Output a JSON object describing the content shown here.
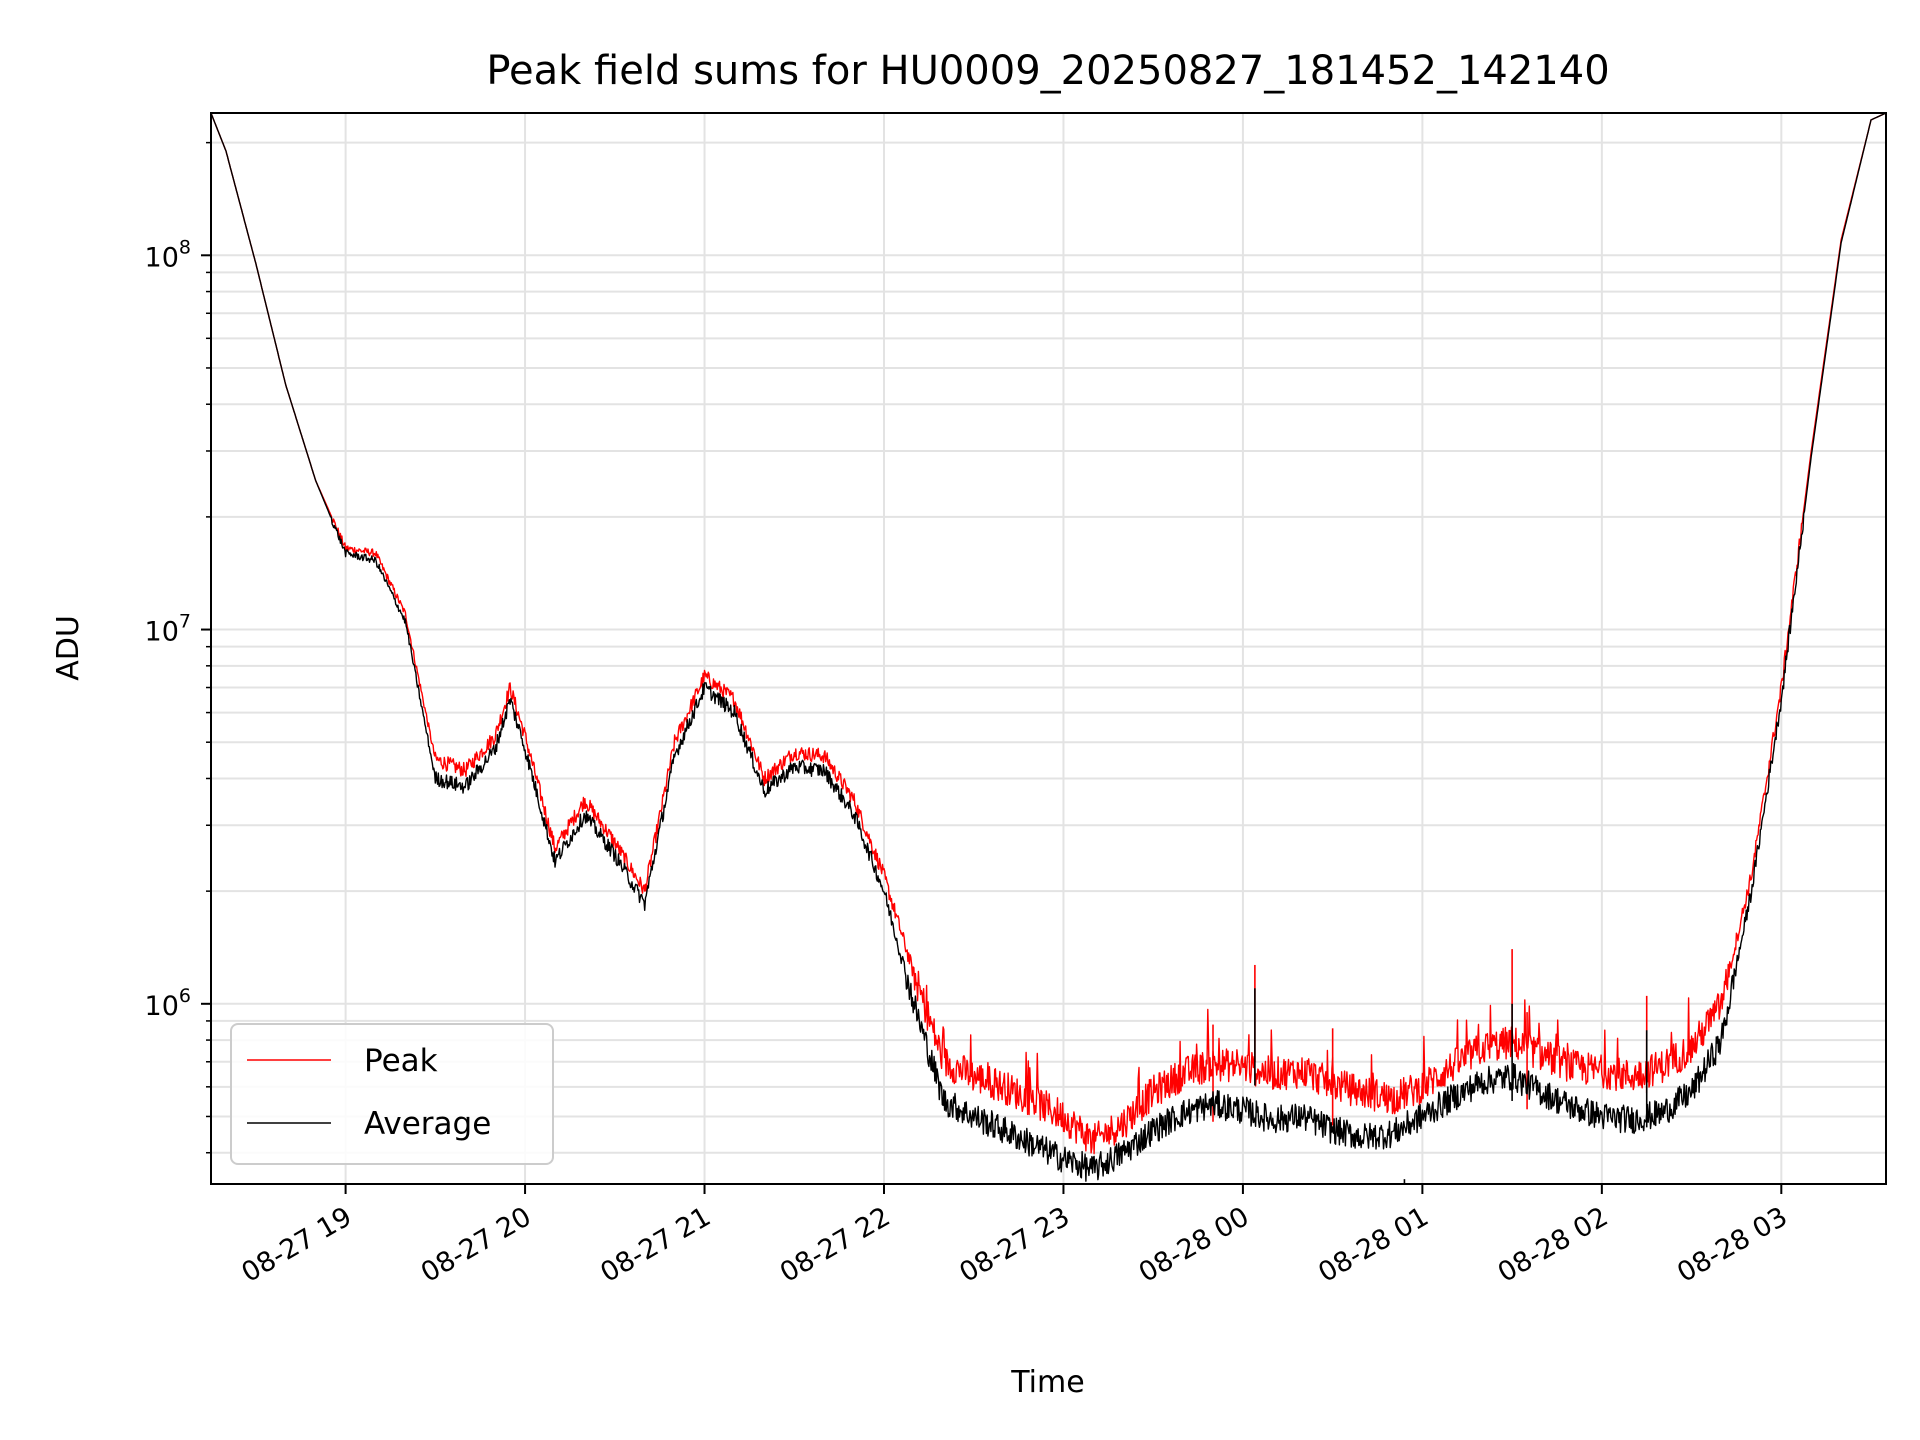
{
  "chart_data": {
    "type": "line",
    "title": "Peak field sums for HU0009_20250827_181452_142140",
    "xlabel": "Time",
    "ylabel": "ADU",
    "yscale": "log",
    "ylim": [
      330000,
      240000000
    ],
    "xlim": [
      "2025-08-27 18:15",
      "2025-08-28 03:35"
    ],
    "grid": true,
    "legend_position": "lower-left",
    "x_ticks": [
      "08-27 19",
      "08-27 20",
      "08-27 21",
      "08-27 22",
      "08-27 23",
      "08-28 00",
      "08-28 01",
      "08-28 02",
      "08-28 03"
    ],
    "y_ticks": [
      {
        "base": "10",
        "exp": "6",
        "value": 1000000
      },
      {
        "base": "10",
        "exp": "7",
        "value": 10000000
      },
      {
        "base": "10",
        "exp": "8",
        "value": 100000000
      }
    ],
    "series": [
      {
        "name": "Peak",
        "color": "#ff0000",
        "points": [
          [
            "2025-08-27 18:15",
            240000000
          ],
          [
            "2025-08-27 18:20",
            190000000
          ],
          [
            "2025-08-27 18:30",
            95000000
          ],
          [
            "2025-08-27 18:40",
            45000000
          ],
          [
            "2025-08-27 18:50",
            25000000
          ],
          [
            "2025-08-27 19:00",
            16500000
          ],
          [
            "2025-08-27 19:10",
            16000000
          ],
          [
            "2025-08-27 19:20",
            11000000
          ],
          [
            "2025-08-27 19:30",
            4500000
          ],
          [
            "2025-08-27 19:40",
            4200000
          ],
          [
            "2025-08-27 19:50",
            5200000
          ],
          [
            "2025-08-27 19:55",
            7000000
          ],
          [
            "2025-08-27 20:00",
            5200000
          ],
          [
            "2025-08-27 20:10",
            2600000
          ],
          [
            "2025-08-27 20:20",
            3500000
          ],
          [
            "2025-08-27 20:30",
            2700000
          ],
          [
            "2025-08-27 20:40",
            2000000
          ],
          [
            "2025-08-27 20:50",
            5000000
          ],
          [
            "2025-08-27 21:00",
            7500000
          ],
          [
            "2025-08-27 21:10",
            6500000
          ],
          [
            "2025-08-27 21:20",
            4000000
          ],
          [
            "2025-08-27 21:30",
            4700000
          ],
          [
            "2025-08-27 21:40",
            4600000
          ],
          [
            "2025-08-27 21:50",
            3500000
          ],
          [
            "2025-08-27 22:00",
            2200000
          ],
          [
            "2025-08-27 22:10",
            1200000
          ],
          [
            "2025-08-27 22:20",
            700000
          ],
          [
            "2025-08-27 22:30",
            640000
          ],
          [
            "2025-08-27 22:40",
            600000
          ],
          [
            "2025-08-27 22:50",
            550000
          ],
          [
            "2025-08-27 23:00",
            500000
          ],
          [
            "2025-08-27 23:10",
            430000
          ],
          [
            "2025-08-27 23:20",
            480000
          ],
          [
            "2025-08-27 23:30",
            580000
          ],
          [
            "2025-08-27 23:40",
            650000
          ],
          [
            "2025-08-27 23:50",
            690000
          ],
          [
            "2025-08-28 00:00",
            680000
          ],
          [
            "2025-08-28 00:10",
            650000
          ],
          [
            "2025-08-28 00:20",
            660000
          ],
          [
            "2025-08-28 00:30",
            610000
          ],
          [
            "2025-08-28 00:40",
            580000
          ],
          [
            "2025-08-28 00:50",
            560000
          ],
          [
            "2025-08-28 01:00",
            600000
          ],
          [
            "2025-08-28 01:10",
            680000
          ],
          [
            "2025-08-28 01:20",
            760000
          ],
          [
            "2025-08-28 01:30",
            790000
          ],
          [
            "2025-08-28 01:40",
            730000
          ],
          [
            "2025-08-28 01:50",
            680000
          ],
          [
            "2025-08-28 02:00",
            660000
          ],
          [
            "2025-08-28 02:10",
            640000
          ],
          [
            "2025-08-28 02:20",
            680000
          ],
          [
            "2025-08-28 02:30",
            760000
          ],
          [
            "2025-08-28 02:40",
            1000000
          ],
          [
            "2025-08-28 02:50",
            2200000
          ],
          [
            "2025-08-28 03:00",
            7000000
          ],
          [
            "2025-08-28 03:10",
            30000000
          ],
          [
            "2025-08-28 03:20",
            110000000
          ],
          [
            "2025-08-28 03:30",
            230000000
          ],
          [
            "2025-08-28 03:35",
            240000000
          ]
        ],
        "spikes": [
          [
            "2025-08-28 00:04",
            1270000
          ],
          [
            "2025-08-28 01:30",
            1400000
          ],
          [
            "2025-08-28 01:35",
            950000
          ],
          [
            "2025-08-28 02:15",
            1050000
          ],
          [
            "2025-08-28 00:30",
            860000
          ],
          [
            "2025-08-27 23:50",
            880000
          ]
        ]
      },
      {
        "name": "Average",
        "color": "#000000",
        "points": [
          [
            "2025-08-27 18:15",
            240000000
          ],
          [
            "2025-08-27 18:20",
            190000000
          ],
          [
            "2025-08-27 18:30",
            95000000
          ],
          [
            "2025-08-27 18:40",
            45000000
          ],
          [
            "2025-08-27 18:50",
            25000000
          ],
          [
            "2025-08-27 19:00",
            16000000
          ],
          [
            "2025-08-27 19:10",
            15300000
          ],
          [
            "2025-08-27 19:20",
            10500000
          ],
          [
            "2025-08-27 19:30",
            4000000
          ],
          [
            "2025-08-27 19:40",
            3800000
          ],
          [
            "2025-08-27 19:50",
            4800000
          ],
          [
            "2025-08-27 19:55",
            6500000
          ],
          [
            "2025-08-27 20:00",
            4800000
          ],
          [
            "2025-08-27 20:10",
            2400000
          ],
          [
            "2025-08-27 20:20",
            3200000
          ],
          [
            "2025-08-27 20:30",
            2500000
          ],
          [
            "2025-08-27 20:40",
            1850000
          ],
          [
            "2025-08-27 20:50",
            4600000
          ],
          [
            "2025-08-27 21:00",
            7000000
          ],
          [
            "2025-08-27 21:10",
            6000000
          ],
          [
            "2025-08-27 21:20",
            3700000
          ],
          [
            "2025-08-27 21:30",
            4300000
          ],
          [
            "2025-08-27 21:40",
            4200000
          ],
          [
            "2025-08-27 21:50",
            3200000
          ],
          [
            "2025-08-27 22:00",
            2000000
          ],
          [
            "2025-08-27 22:10",
            1000000
          ],
          [
            "2025-08-27 22:20",
            550000
          ],
          [
            "2025-08-27 22:30",
            500000
          ],
          [
            "2025-08-27 22:40",
            460000
          ],
          [
            "2025-08-27 22:50",
            420000
          ],
          [
            "2025-08-27 23:00",
            385000
          ],
          [
            "2025-08-27 23:10",
            360000
          ],
          [
            "2025-08-27 23:20",
            400000
          ],
          [
            "2025-08-27 23:30",
            460000
          ],
          [
            "2025-08-27 23:40",
            510000
          ],
          [
            "2025-08-27 23:50",
            540000
          ],
          [
            "2025-08-28 00:00",
            520000
          ],
          [
            "2025-08-28 00:10",
            490000
          ],
          [
            "2025-08-28 00:20",
            500000
          ],
          [
            "2025-08-28 00:30",
            460000
          ],
          [
            "2025-08-28 00:40",
            440000
          ],
          [
            "2025-08-28 00:50",
            450000
          ],
          [
            "2025-08-28 01:00",
            500000
          ],
          [
            "2025-08-28 01:10",
            560000
          ],
          [
            "2025-08-28 01:20",
            620000
          ],
          [
            "2025-08-28 01:30",
            640000
          ],
          [
            "2025-08-28 01:40",
            580000
          ],
          [
            "2025-08-28 01:50",
            530000
          ],
          [
            "2025-08-28 02:00",
            500000
          ],
          [
            "2025-08-28 02:10",
            490000
          ],
          [
            "2025-08-28 02:20",
            510000
          ],
          [
            "2025-08-28 02:30",
            580000
          ],
          [
            "2025-08-28 02:40",
            800000
          ],
          [
            "2025-08-28 02:50",
            2000000
          ],
          [
            "2025-08-28 03:00",
            6500000
          ],
          [
            "2025-08-28 03:10",
            29000000
          ],
          [
            "2025-08-28 03:20",
            108000000
          ],
          [
            "2025-08-28 03:30",
            230000000
          ],
          [
            "2025-08-28 03:35",
            240000000
          ]
        ],
        "spikes": [
          [
            "2025-08-28 00:04",
            1100000
          ],
          [
            "2025-08-28 01:30",
            1000000
          ],
          [
            "2025-08-28 02:15",
            850000
          ],
          [
            "2025-08-28 00:54",
            340000
          ]
        ]
      }
    ]
  }
}
